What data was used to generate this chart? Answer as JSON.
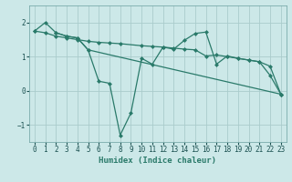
{
  "xlabel": "Humidex (Indice chaleur)",
  "bg_color": "#cce8e8",
  "grid_color": "#aacccc",
  "line_color": "#2a7a6a",
  "ylim": [
    -1.5,
    2.5
  ],
  "xlim": [
    -0.5,
    23.5
  ],
  "yticks": [
    -1,
    0,
    1,
    2
  ],
  "xticks": [
    0,
    1,
    2,
    3,
    4,
    5,
    6,
    7,
    8,
    9,
    10,
    11,
    12,
    13,
    14,
    15,
    16,
    17,
    18,
    19,
    20,
    21,
    22,
    23
  ],
  "line1_x": [
    0,
    1,
    2,
    3,
    4,
    5,
    23
  ],
  "line1_y": [
    1.75,
    2.0,
    1.7,
    1.6,
    1.55,
    1.2,
    -0.1
  ],
  "line2_x": [
    0,
    1,
    2,
    3,
    4,
    5,
    6,
    7,
    8,
    10,
    11,
    12,
    13,
    14,
    15,
    16,
    17,
    18,
    19,
    20,
    21,
    22,
    23
  ],
  "line2_y": [
    1.75,
    1.7,
    1.6,
    1.55,
    1.5,
    1.45,
    1.42,
    1.4,
    1.38,
    1.32,
    1.3,
    1.28,
    1.25,
    1.22,
    1.2,
    1.02,
    1.05,
    1.0,
    0.95,
    0.9,
    0.85,
    0.72,
    -0.1
  ],
  "line3_x": [
    2,
    3,
    4,
    5,
    6,
    7,
    8,
    9,
    10,
    11,
    12,
    13,
    14,
    15,
    16,
    17,
    18,
    19,
    20,
    21,
    22,
    23
  ],
  "line3_y": [
    1.7,
    1.6,
    1.55,
    1.2,
    0.28,
    0.22,
    -1.3,
    -0.65,
    0.95,
    0.78,
    1.28,
    1.22,
    1.48,
    1.68,
    1.72,
    0.78,
    1.02,
    0.95,
    0.9,
    0.85,
    0.45,
    -0.1
  ],
  "tick_fontsize": 5.5,
  "xlabel_fontsize": 6.5
}
